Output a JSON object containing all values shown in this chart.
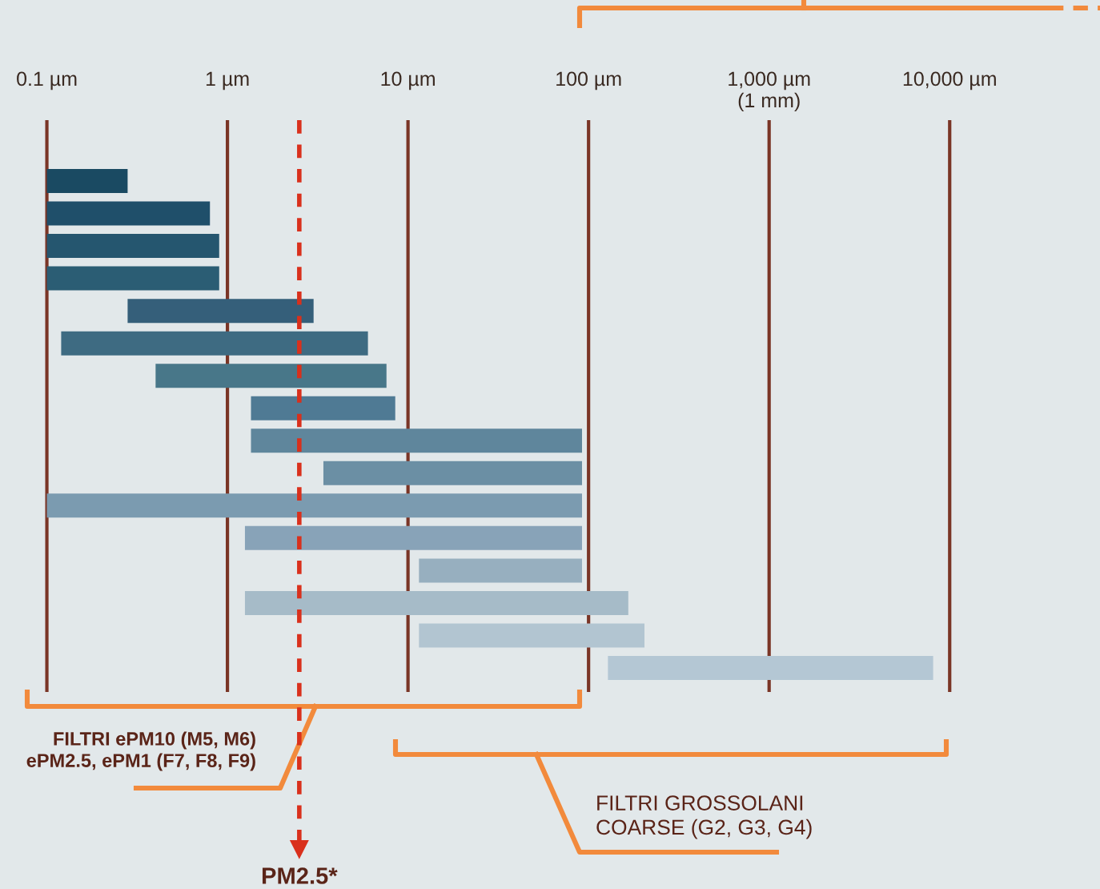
{
  "chart_data": {
    "type": "bar",
    "orientation": "horizontal",
    "log": "x",
    "categories": [
      null,
      null,
      null,
      null,
      null,
      null,
      null,
      null,
      null,
      null,
      null,
      null,
      null,
      null,
      null,
      null
    ],
    "base": [
      0.1,
      0.1,
      0.1,
      0.1,
      0.28,
      0.12,
      0.4,
      1.35,
      1.35,
      3.4,
      0.1,
      1.25,
      11.5,
      1.25,
      11.5,
      128
    ],
    "values": [
      0.18,
      0.7,
      0.8,
      0.8,
      2.72,
      5.88,
      7.2,
      7.15,
      90.65,
      88.6,
      91.9,
      90.75,
      80.5,
      164.75,
      192.5,
      7972
    ],
    "colors": [
      "#1a4a62",
      "#1f4f6a",
      "#25566f",
      "#2b5d74",
      "#355f7a",
      "#3e6b82",
      "#487789",
      "#4f7a94",
      "#5f869c",
      "#6b8fa4",
      "#7b9bb0",
      "#88a3b8",
      "#97afbf",
      "#a6bbc8",
      "#b2c5d1",
      "#b4c7d4"
    ],
    "xlim": [
      0.055,
      68000
    ],
    "xticks": [
      {
        "value": 0.1,
        "label": "0.1 µm"
      },
      {
        "value": 1,
        "label": "1 µm"
      },
      {
        "value": 10,
        "label": "10 µm"
      },
      {
        "value": 100,
        "label": "100 µm"
      },
      {
        "value": 1000,
        "label": "1,000 µm\n(1 mm)"
      },
      {
        "value": 10000,
        "label": "10,000 µm"
      }
    ],
    "grid": "x",
    "ref_lines": [
      {
        "axis": "x",
        "value": 2.5,
        "label": "PM2.5*",
        "color": "#d9301c",
        "line_style": "dashed"
      }
    ],
    "annotations": [
      "FILTRI ePM10 (M5, M6)\nePM2.5, ePM1 (F7, F8, F9)",
      "FILTRI GROSSOLANI\nCOARSE (G2, G3, G4)"
    ]
  }
}
